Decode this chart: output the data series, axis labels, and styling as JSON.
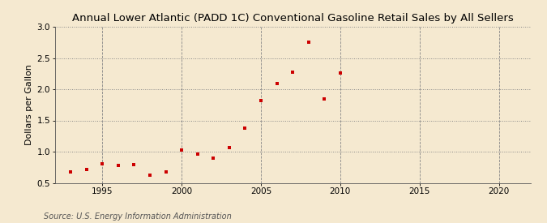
{
  "title": "Annual Lower Atlantic (PADD 1C) Conventional Gasoline Retail Sales by All Sellers",
  "ylabel": "Dollars per Gallon",
  "source": "Source: U.S. Energy Information Administration",
  "background_color": "#f5e9d0",
  "marker_color": "#cc0000",
  "years": [
    1993,
    1994,
    1995,
    1996,
    1997,
    1998,
    1999,
    2000,
    2001,
    2002,
    2003,
    2004,
    2005,
    2006,
    2007,
    2008,
    2009,
    2010
  ],
  "values": [
    0.67,
    0.71,
    0.8,
    0.78,
    0.79,
    0.62,
    0.68,
    1.02,
    0.96,
    0.9,
    1.07,
    1.38,
    1.82,
    2.09,
    2.27,
    2.75,
    1.85,
    2.26
  ],
  "xlim": [
    1992,
    2022
  ],
  "ylim": [
    0.5,
    3.0
  ],
  "xticks": [
    1995,
    2000,
    2005,
    2010,
    2015,
    2020
  ],
  "yticks": [
    0.5,
    1.0,
    1.5,
    2.0,
    2.5,
    3.0
  ],
  "title_fontsize": 9.5,
  "label_fontsize": 8,
  "tick_fontsize": 7.5,
  "source_fontsize": 7
}
